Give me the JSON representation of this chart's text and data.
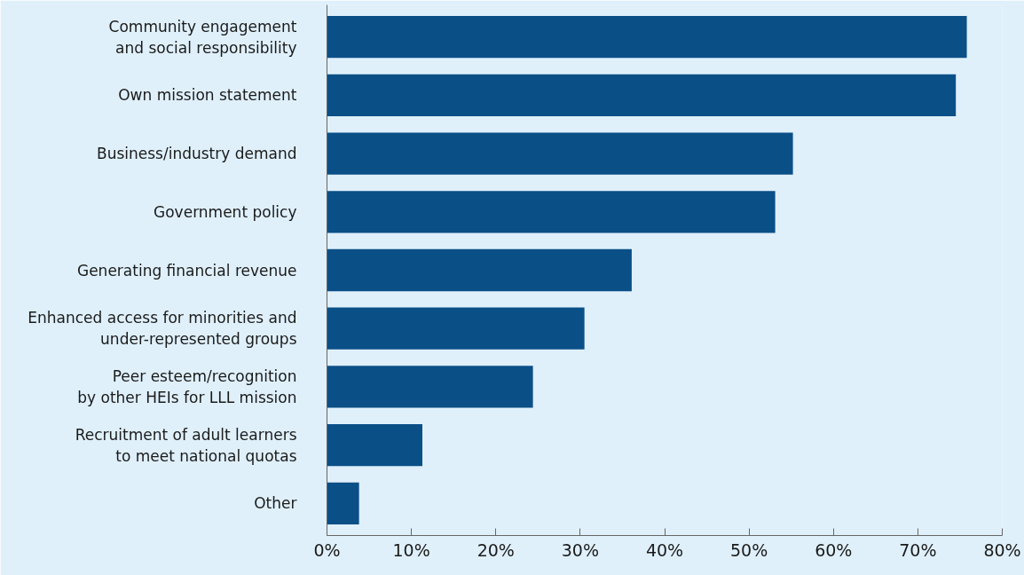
{
  "chart_data": {
    "type": "bar",
    "orientation": "horizontal",
    "color": "#0b4f87",
    "categories": [
      "Community engagement\nand social responsibility",
      "Own mission statement",
      "Business/industry demand",
      "Government policy",
      "Generating financial revenue",
      "Enhanced access for minorities and\nunder-represented groups",
      "Peer esteem/recognition\nby other HEIs for LLL mission",
      "Recruitment of adult learners\nto meet national quotas",
      "Other"
    ],
    "values": [
      75.8,
      74.5,
      55.2,
      53.1,
      36.1,
      30.5,
      24.4,
      11.3,
      3.8
    ],
    "xlim": [
      0,
      80
    ],
    "xticks": [
      {
        "value": 0,
        "label": "0%"
      },
      {
        "value": 10,
        "label": "10%"
      },
      {
        "value": 20,
        "label": "20%"
      },
      {
        "value": 30,
        "label": "30%"
      },
      {
        "value": 40,
        "label": "40%"
      },
      {
        "value": 50,
        "label": "50%"
      },
      {
        "value": 60,
        "label": "60%"
      },
      {
        "value": 70,
        "label": "70%"
      },
      {
        "value": 80,
        "label": "80%"
      }
    ],
    "grid": false
  }
}
